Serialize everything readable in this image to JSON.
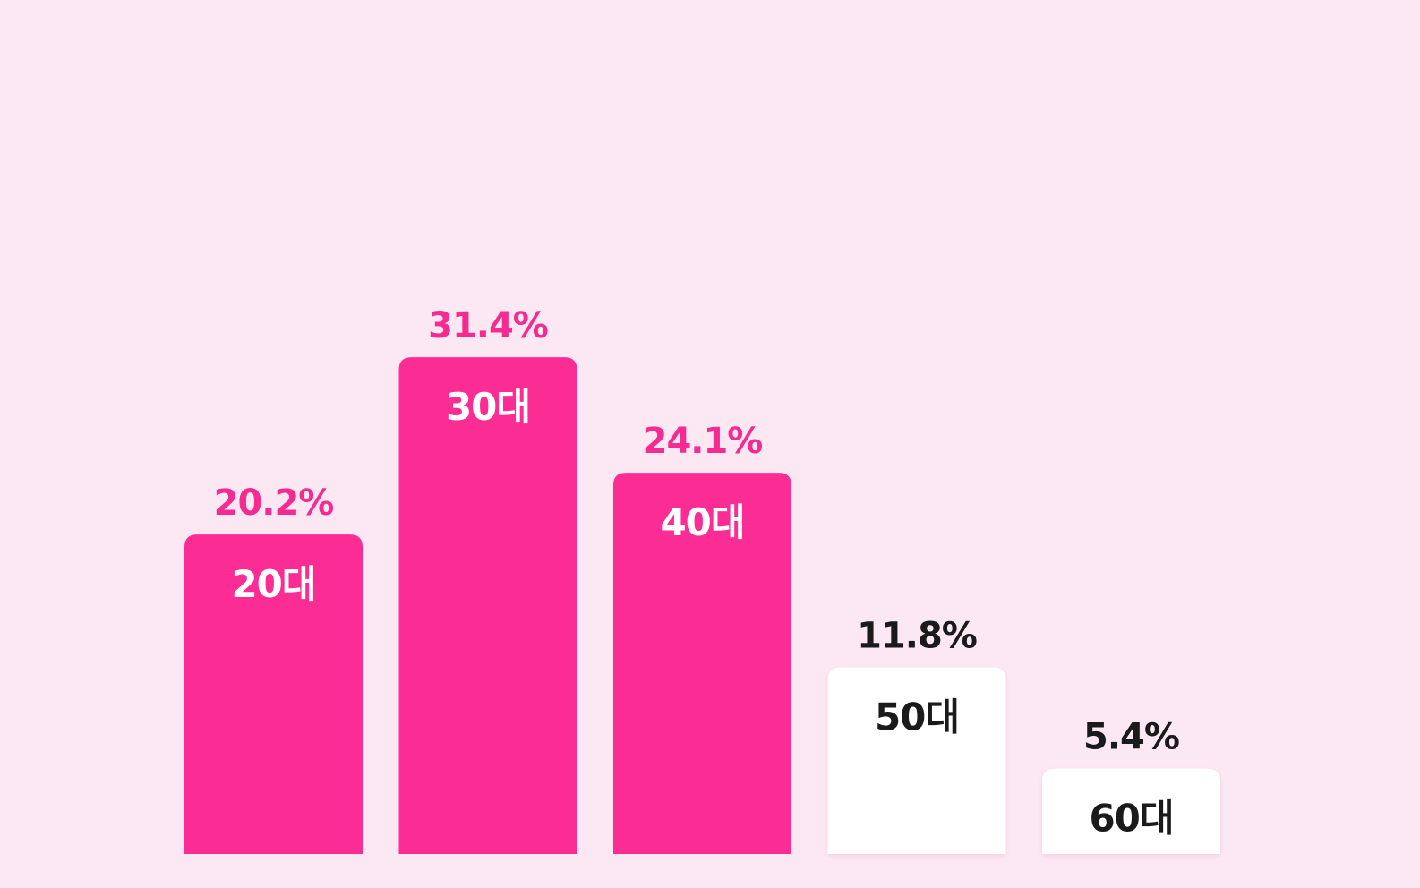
{
  "chart_data": {
    "type": "bar",
    "categories": [
      "20대",
      "30대",
      "40대",
      "50대",
      "60대"
    ],
    "values": [
      20.2,
      31.4,
      24.1,
      11.8,
      5.4
    ],
    "value_labels": [
      "20.2%",
      "31.4%",
      "24.1%",
      "11.8%",
      "5.4%"
    ],
    "highlighted": [
      true,
      true,
      true,
      false,
      false
    ],
    "title": "",
    "xlabel": "",
    "ylabel": "",
    "ylim": [
      0,
      40
    ],
    "grid": false,
    "colors": {
      "background": "#fce8f3",
      "highlight_bar": "#fb2d95",
      "highlight_value_text": "#f52b8f",
      "highlight_category_text": "#ffffff",
      "muted_bar": "#ffffff",
      "muted_value_text": "#1a1a1a",
      "muted_category_text": "#1a1a1a"
    }
  }
}
